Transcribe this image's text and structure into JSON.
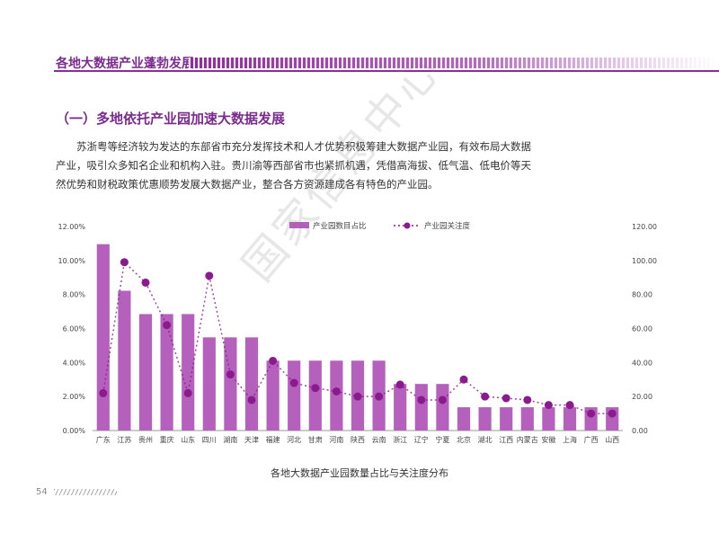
{
  "header": {
    "title": "各地大数据产业蓬勃发展"
  },
  "section": {
    "title": "（一）多地依托产业园加速大数据发展"
  },
  "paragraph": "苏浙粤等经济较为发达的东部省市充分发挥技术和人才优势积极筹建大数据产业园，有效布局大数据产业，吸引众多知名企业和机构入驻。贵川渝等西部省市也紧抓机遇，凭借高海拔、低气温、低电价等天然优势和财税政策优惠顺势发展大数据产业，整合各方资源建成各有特色的产业园。",
  "watermark": "国家信息中心",
  "caption": "各地大数据产业园数量占比与关注度分布",
  "page_number": "54",
  "colors": {
    "bar": "#b560bd",
    "line": "#8b1a8f",
    "accent": "#7b2b8f"
  },
  "chart_data": {
    "type": "bar",
    "categories": [
      "广东",
      "江苏",
      "贵州",
      "重庆",
      "山东",
      "四川",
      "湖南",
      "天津",
      "福建",
      "河北",
      "甘肃",
      "河南",
      "陕西",
      "云南",
      "浙江",
      "辽宁",
      "宁夏",
      "北京",
      "湖北",
      "江西",
      "内蒙古",
      "安徽",
      "上海",
      "广西",
      "山西"
    ],
    "series": [
      {
        "name": "产业园数目占比",
        "type": "bar",
        "axis": "left",
        "values": [
          10.96,
          8.22,
          6.85,
          6.85,
          6.85,
          5.48,
          5.48,
          5.48,
          4.11,
          4.11,
          4.11,
          4.11,
          4.11,
          4.11,
          2.74,
          2.74,
          2.74,
          1.37,
          1.37,
          1.37,
          1.37,
          1.37,
          1.37,
          1.37,
          1.37
        ]
      },
      {
        "name": "产业园关注度",
        "type": "line",
        "axis": "right",
        "values": [
          22,
          99,
          87,
          62,
          22,
          91,
          33,
          18,
          41,
          28,
          25,
          23,
          20,
          20,
          27,
          18,
          18,
          30,
          20,
          19,
          18,
          15,
          15,
          10,
          10
        ]
      }
    ],
    "y_left": {
      "min": 0,
      "max": 12,
      "ticks": [
        "0.00%",
        "2.00%",
        "4.00%",
        "6.00%",
        "8.00%",
        "10.00%",
        "12.00%"
      ]
    },
    "y_right": {
      "min": 0,
      "max": 120,
      "ticks": [
        "0.00",
        "20.00",
        "40.00",
        "60.00",
        "80.00",
        "100.00",
        "120.00"
      ]
    },
    "legend": {
      "position": "top",
      "items": [
        "产业园数目占比",
        "产业园关注度"
      ]
    },
    "grid": false
  }
}
